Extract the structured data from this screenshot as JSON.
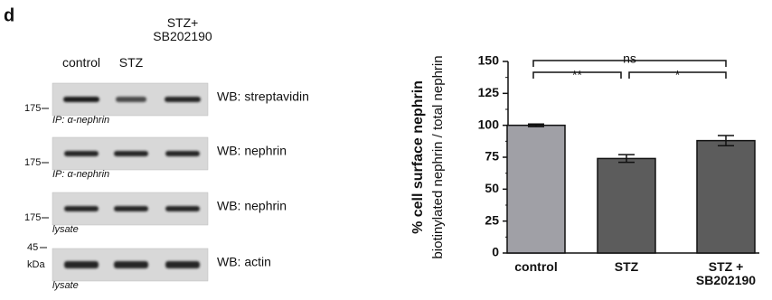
{
  "panel_label": "d",
  "blots": {
    "columns": [
      "control",
      "STZ",
      "STZ+ SB202190"
    ],
    "rows": [
      {
        "marker": "175",
        "unit": null,
        "probe": "WB: streptavidin",
        "note": "IP: α-nephrin"
      },
      {
        "marker": "175",
        "unit": null,
        "probe": "WB: nephrin",
        "note": "IP: α-nephrin"
      },
      {
        "marker": "175",
        "unit": null,
        "probe": "WB: nephrin",
        "note": "lysate"
      },
      {
        "marker": "45",
        "unit": "kDa",
        "probe": "WB: actin",
        "note": "lysate"
      }
    ]
  },
  "chart_data": {
    "type": "bar",
    "y_label": "% cell surface nephrin",
    "y_sublabel": "biotinylated nephrin / total nephrin",
    "categories": [
      "control",
      "STZ",
      "STZ + SB202190"
    ],
    "series": [
      {
        "values": [
          100,
          74,
          88
        ],
        "errors": [
          1,
          3,
          4
        ],
        "colors": [
          "#a0a0a6",
          "#5c5c5c",
          "#5c5c5c"
        ]
      }
    ],
    "ylim": [
      0,
      150
    ],
    "yticks": [
      0,
      25,
      50,
      75,
      100,
      125,
      150
    ],
    "significance": [
      {
        "from": 0,
        "to": 2,
        "label": "ns",
        "level": 0
      },
      {
        "from": 0,
        "to": 1,
        "label": "**",
        "level": 1
      },
      {
        "from": 1,
        "to": 2,
        "label": "*",
        "level": 1
      }
    ]
  }
}
